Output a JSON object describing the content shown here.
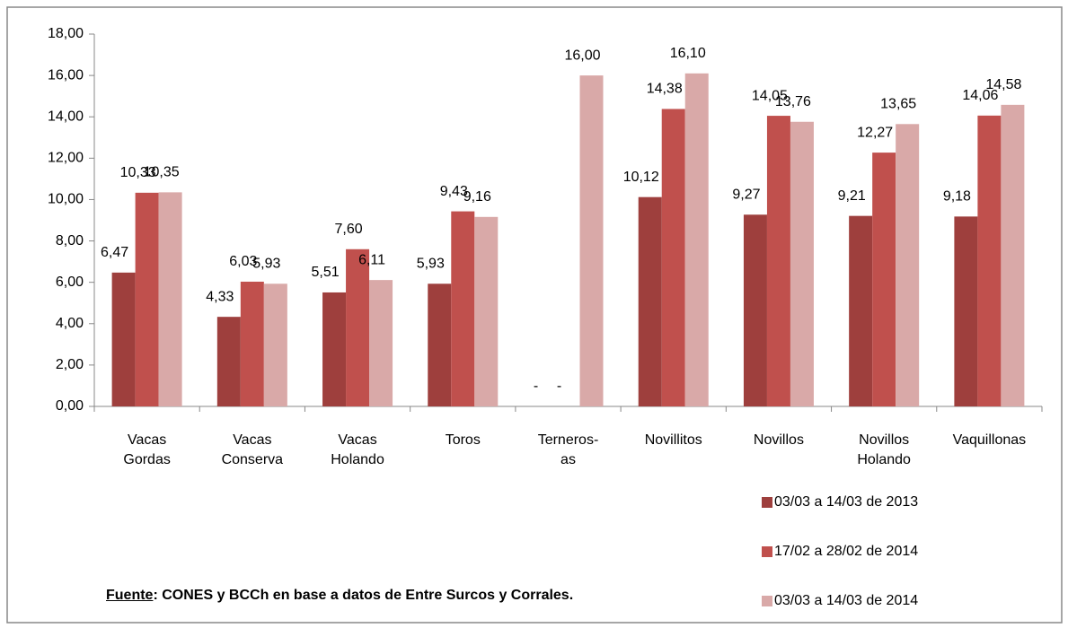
{
  "chart_data": {
    "type": "bar",
    "categories": [
      "Vacas Gordas",
      "Vacas Conserva",
      "Vacas Holando",
      "Toros",
      "Terneros-as",
      "Novillitos",
      "Novillos",
      "Novillos Holando",
      "Vaquillonas"
    ],
    "series": [
      {
        "name": "03/03 a 14/03 de 2013",
        "color": "#9e3f3d",
        "values": [
          6.47,
          4.33,
          5.51,
          5.93,
          null,
          10.12,
          9.27,
          9.21,
          9.18
        ],
        "value_labels": [
          "6,47",
          "4,33",
          "5,51",
          "5,93",
          "-",
          "10,12",
          "9,27",
          "9,21",
          "9,18"
        ]
      },
      {
        "name": "17/02 a 28/02 de 2014",
        "color": "#c0504d",
        "values": [
          10.33,
          6.03,
          7.6,
          9.43,
          null,
          14.38,
          14.05,
          12.27,
          14.06
        ],
        "value_labels": [
          "10,33",
          "6,03",
          "7,60",
          "9,43",
          "-",
          "14,38",
          "14,05",
          "12,27",
          "14,06"
        ]
      },
      {
        "name": "03/03 a 14/03 de 2014",
        "color": "#d9a9a8",
        "values": [
          10.35,
          5.93,
          6.11,
          9.16,
          16.0,
          16.1,
          13.76,
          13.65,
          14.58
        ],
        "value_labels": [
          "10,35",
          "5,93",
          "6,11",
          "9,16",
          "16,00",
          "16,10",
          "13,76",
          "13,65",
          "14,58"
        ]
      }
    ],
    "ylim": [
      0,
      18
    ],
    "yticks": [
      {
        "value": 0,
        "label": "0,00"
      },
      {
        "value": 2,
        "label": "2,00"
      },
      {
        "value": 4,
        "label": "4,00"
      },
      {
        "value": 6,
        "label": "6,00"
      },
      {
        "value": 8,
        "label": "8,00"
      },
      {
        "value": 10,
        "label": "10,00"
      },
      {
        "value": 12,
        "label": "12,00"
      },
      {
        "value": 14,
        "label": "14,00"
      },
      {
        "value": 16,
        "label": "16,00"
      },
      {
        "value": 18,
        "label": "18,00"
      }
    ],
    "grid": false,
    "source_label": "Fuente",
    "source_text": ": CONES y BCCh en base a datos de Entre Surcos y Corrales."
  }
}
